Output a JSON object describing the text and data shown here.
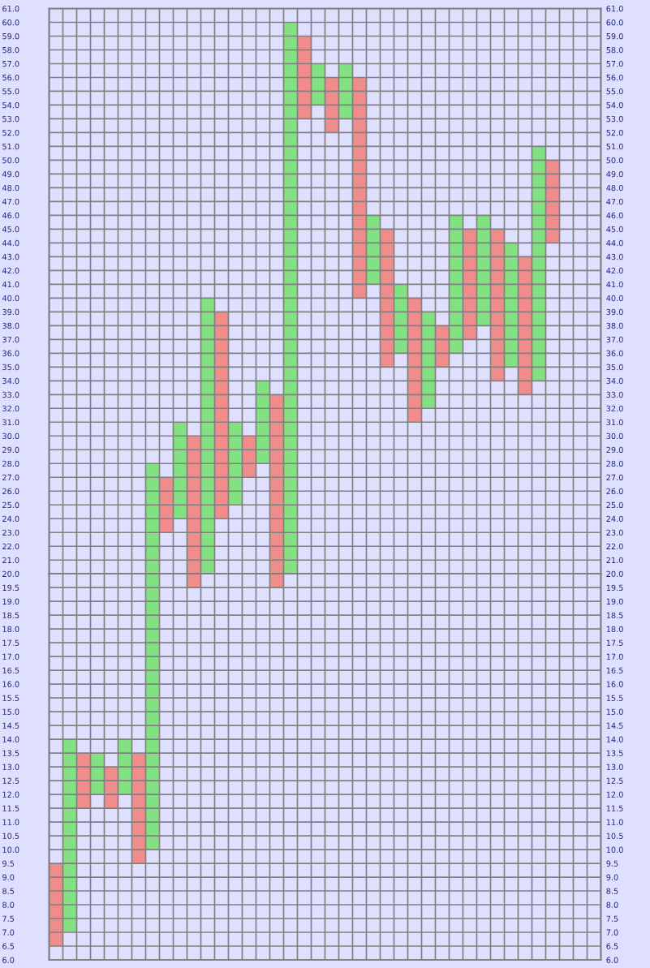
{
  "chart_data": [
    {
      "type": "bar",
      "categories": [
        null,
        null,
        null,
        null,
        null,
        null,
        null,
        null,
        null,
        null,
        null,
        null,
        null,
        null,
        null,
        null,
        null,
        null,
        null,
        null,
        null,
        null,
        null,
        null,
        null,
        null,
        null,
        null,
        null,
        null,
        null,
        null,
        null,
        null,
        null,
        null,
        null,
        null,
        null,
        null
      ],
      "base": [
        null,
        null,
        null,
        null,
        null,
        null,
        null,
        20,
        23,
        24,
        20,
        20,
        24,
        25,
        27,
        28,
        20,
        20,
        53,
        54,
        52,
        53,
        40,
        41,
        35,
        36,
        31,
        32,
        35,
        36,
        37,
        38,
        34,
        35,
        33,
        34,
        44,
        null,
        null,
        null
      ],
      "values": [
        null,
        null,
        null,
        null,
        null,
        null,
        null,
        8,
        4,
        7,
        10,
        20,
        15,
        6,
        3,
        6,
        13,
        40,
        6,
        3,
        4,
        4,
        16,
        5,
        10,
        5,
        9,
        7,
        3,
        10,
        8,
        8,
        11,
        9,
        10,
        17,
        6,
        null,
        null,
        null
      ],
      "colors": [
        null,
        null,
        null,
        null,
        null,
        null,
        null,
        "#82e282",
        "#f08c8c",
        "#82e282",
        "#f08c8c",
        "#82e282",
        "#f08c8c",
        "#82e282",
        "#f08c8c",
        "#82e282",
        "#f08c8c",
        "#82e282",
        "#f08c8c",
        "#82e282",
        "#f08c8c",
        "#82e282",
        "#f08c8c",
        "#82e282",
        "#f08c8c",
        "#82e282",
        "#f08c8c",
        "#82e282",
        "#f08c8c",
        "#82e282",
        "#f08c8c",
        "#82e282",
        "#f08c8c",
        "#82e282",
        "#f08c8c",
        "#82e282",
        "#f08c8c",
        null,
        null,
        null
      ],
      "ylim": [
        20,
        61
      ],
      "yticks": [
        {
          "value": 21,
          "label": "21.0"
        },
        {
          "value": 22,
          "label": "22.0"
        },
        {
          "value": 23,
          "label": "23.0"
        },
        {
          "value": 24,
          "label": "24.0"
        },
        {
          "value": 25,
          "label": "25.0"
        },
        {
          "value": 26,
          "label": "26.0"
        },
        {
          "value": 27,
          "label": "27.0"
        },
        {
          "value": 28,
          "label": "28.0"
        },
        {
          "value": 29,
          "label": "29.0"
        },
        {
          "value": 30,
          "label": "30.0"
        },
        {
          "value": 31,
          "label": "31.0"
        },
        {
          "value": 32,
          "label": "32.0"
        },
        {
          "value": 33,
          "label": "33.0"
        },
        {
          "value": 34,
          "label": "34.0"
        },
        {
          "value": 35,
          "label": "35.0"
        },
        {
          "value": 36,
          "label": "36.0"
        },
        {
          "value": 37,
          "label": "37.0"
        },
        {
          "value": 38,
          "label": "38.0"
        },
        {
          "value": 39,
          "label": "39.0"
        },
        {
          "value": 40,
          "label": "40.0"
        },
        {
          "value": 41,
          "label": "41.0"
        },
        {
          "value": 42,
          "label": "42.0"
        },
        {
          "value": 43,
          "label": "43.0"
        },
        {
          "value": 44,
          "label": "44.0"
        },
        {
          "value": 45,
          "label": "45.0"
        },
        {
          "value": 46,
          "label": "46.0"
        },
        {
          "value": 47,
          "label": "47.0"
        },
        {
          "value": 48,
          "label": "48.0"
        },
        {
          "value": 49,
          "label": "49.0"
        },
        {
          "value": 50,
          "label": "50.0"
        },
        {
          "value": 51,
          "label": "51.0"
        },
        {
          "value": 52,
          "label": "52.0"
        },
        {
          "value": 53,
          "label": "53.0"
        },
        {
          "value": 54,
          "label": "54.0"
        },
        {
          "value": 55,
          "label": "55.0"
        },
        {
          "value": 56,
          "label": "56.0"
        },
        {
          "value": 57,
          "label": "57.0"
        },
        {
          "value": 58,
          "label": "58.0"
        },
        {
          "value": 59,
          "label": "59.0"
        },
        {
          "value": 60,
          "label": "60.0"
        },
        {
          "value": 61,
          "label": "61.0"
        }
      ],
      "y2lim": [
        20,
        61
      ],
      "y2ticks": [
        {
          "value": 21,
          "label": "21.0"
        },
        {
          "value": 22,
          "label": "22.0"
        },
        {
          "value": 23,
          "label": "23.0"
        },
        {
          "value": 24,
          "label": "24.0"
        },
        {
          "value": 25,
          "label": "25.0"
        },
        {
          "value": 26,
          "label": "26.0"
        },
        {
          "value": 27,
          "label": "27.0"
        },
        {
          "value": 28,
          "label": "28.0"
        },
        {
          "value": 29,
          "label": "29.0"
        },
        {
          "value": 30,
          "label": "30.0"
        },
        {
          "value": 31,
          "label": "31.0"
        },
        {
          "value": 32,
          "label": "32.0"
        },
        {
          "value": 33,
          "label": "33.0"
        },
        {
          "value": 34,
          "label": "34.0"
        },
        {
          "value": 35,
          "label": "35.0"
        },
        {
          "value": 36,
          "label": "36.0"
        },
        {
          "value": 37,
          "label": "37.0"
        },
        {
          "value": 38,
          "label": "38.0"
        },
        {
          "value": 39,
          "label": "39.0"
        },
        {
          "value": 40,
          "label": "40.0"
        },
        {
          "value": 41,
          "label": "41.0"
        },
        {
          "value": 42,
          "label": "42.0"
        },
        {
          "value": 43,
          "label": "43.0"
        },
        {
          "value": 44,
          "label": "44.0"
        },
        {
          "value": 45,
          "label": "45.0"
        },
        {
          "value": 46,
          "label": "46.0"
        },
        {
          "value": 47,
          "label": "47.0"
        },
        {
          "value": 48,
          "label": "48.0"
        },
        {
          "value": 49,
          "label": "49.0"
        },
        {
          "value": 50,
          "label": "50.0"
        },
        {
          "value": 51,
          "label": "51.0"
        },
        {
          "value": 52,
          "label": "52.0"
        },
        {
          "value": 53,
          "label": "53.0"
        },
        {
          "value": 54,
          "label": "54.0"
        },
        {
          "value": 55,
          "label": "55.0"
        },
        {
          "value": 56,
          "label": "56.0"
        },
        {
          "value": 57,
          "label": "57.0"
        },
        {
          "value": 58,
          "label": "58.0"
        },
        {
          "value": 59,
          "label": "59.0"
        },
        {
          "value": 60,
          "label": "60.0"
        },
        {
          "value": 61,
          "label": "61.0"
        }
      ],
      "grid": true,
      "tick_labels": "y"
    },
    {
      "type": "bar",
      "categories": [
        null,
        null,
        null,
        null,
        null,
        null,
        null,
        null,
        null,
        null,
        null,
        null,
        null,
        null,
        null,
        null,
        null,
        null,
        null,
        null,
        null,
        null,
        null,
        null,
        null,
        null,
        null,
        null,
        null,
        null,
        null,
        null,
        null,
        null,
        null,
        null,
        null,
        null,
        null,
        null
      ],
      "base": [
        6.5,
        7.0,
        11.5,
        12.0,
        11.5,
        12.0,
        9.5,
        10.0,
        null,
        null,
        19.5,
        null,
        null,
        null,
        null,
        null,
        19.5,
        null,
        null,
        null,
        null,
        null,
        null,
        null,
        null,
        null,
        null,
        null,
        null,
        null,
        null,
        null,
        null,
        null,
        null,
        null,
        null,
        null,
        null,
        null
      ],
      "values": [
        3.0,
        7.0,
        2.0,
        1.5,
        1.5,
        2.0,
        4.0,
        10.0,
        null,
        null,
        0.5,
        null,
        null,
        null,
        null,
        null,
        0.5,
        null,
        null,
        null,
        null,
        null,
        null,
        null,
        null,
        null,
        null,
        null,
        null,
        null,
        null,
        null,
        null,
        null,
        null,
        null,
        null,
        null,
        null,
        null
      ],
      "colors": [
        "#f08c8c",
        "#82e282",
        "#f08c8c",
        "#82e282",
        "#f08c8c",
        "#82e282",
        "#f08c8c",
        "#82e282",
        null,
        null,
        "#f08c8c",
        null,
        null,
        null,
        null,
        null,
        "#f08c8c",
        null,
        null,
        null,
        null,
        null,
        null,
        null,
        null,
        null,
        null,
        null,
        null,
        null,
        null,
        null,
        null,
        null,
        null,
        null,
        null,
        null,
        null,
        null
      ],
      "ylim": [
        6,
        20
      ],
      "yticks": [
        {
          "value": 6,
          "label": "6.0"
        },
        {
          "value": 6.5,
          "label": "6.5"
        },
        {
          "value": 7,
          "label": "7.0"
        },
        {
          "value": 7.5,
          "label": "7.5"
        },
        {
          "value": 8,
          "label": "8.0"
        },
        {
          "value": 8.5,
          "label": "8.5"
        },
        {
          "value": 9,
          "label": "9.0"
        },
        {
          "value": 9.5,
          "label": "9.5"
        },
        {
          "value": 10,
          "label": "10.0"
        },
        {
          "value": 10.5,
          "label": "10.5"
        },
        {
          "value": 11,
          "label": "11.0"
        },
        {
          "value": 11.5,
          "label": "11.5"
        },
        {
          "value": 12,
          "label": "12.0"
        },
        {
          "value": 12.5,
          "label": "12.5"
        },
        {
          "value": 13,
          "label": "13.0"
        },
        {
          "value": 13.5,
          "label": "13.5"
        },
        {
          "value": 14,
          "label": "14.0"
        },
        {
          "value": 14.5,
          "label": "14.5"
        },
        {
          "value": 15,
          "label": "15.0"
        },
        {
          "value": 15.5,
          "label": "15.5"
        },
        {
          "value": 16,
          "label": "16.0"
        },
        {
          "value": 16.5,
          "label": "16.5"
        },
        {
          "value": 17,
          "label": "17.0"
        },
        {
          "value": 17.5,
          "label": "17.5"
        },
        {
          "value": 18,
          "label": "18.0"
        },
        {
          "value": 18.5,
          "label": "18.5"
        },
        {
          "value": 19,
          "label": "19.0"
        },
        {
          "value": 19.5,
          "label": "19.5"
        },
        {
          "value": 20,
          "label": "20.0"
        }
      ],
      "y2lim": [
        6,
        20
      ],
      "y2ticks": [
        {
          "value": 6,
          "label": "6.0"
        },
        {
          "value": 6.5,
          "label": "6.5"
        },
        {
          "value": 7,
          "label": "7.0"
        },
        {
          "value": 7.5,
          "label": "7.5"
        },
        {
          "value": 8,
          "label": "8.0"
        },
        {
          "value": 8.5,
          "label": "8.5"
        },
        {
          "value": 9,
          "label": "9.0"
        },
        {
          "value": 9.5,
          "label": "9.5"
        },
        {
          "value": 10,
          "label": "10.0"
        },
        {
          "value": 10.5,
          "label": "10.5"
        },
        {
          "value": 11,
          "label": "11.0"
        },
        {
          "value": 11.5,
          "label": "11.5"
        },
        {
          "value": 12,
          "label": "12.0"
        },
        {
          "value": 12.5,
          "label": "12.5"
        },
        {
          "value": 13,
          "label": "13.0"
        },
        {
          "value": 13.5,
          "label": "13.5"
        },
        {
          "value": 14,
          "label": "14.0"
        },
        {
          "value": 14.5,
          "label": "14.5"
        },
        {
          "value": 15,
          "label": "15.0"
        },
        {
          "value": 15.5,
          "label": "15.5"
        },
        {
          "value": 16,
          "label": "16.0"
        },
        {
          "value": 16.5,
          "label": "16.5"
        },
        {
          "value": 17,
          "label": "17.0"
        },
        {
          "value": 17.5,
          "label": "17.5"
        },
        {
          "value": 18,
          "label": "18.0"
        },
        {
          "value": 18.5,
          "label": "18.5"
        },
        {
          "value": 19,
          "label": "19.0"
        },
        {
          "value": 19.5,
          "label": "19.5"
        },
        {
          "value": 20,
          "label": "20.0"
        }
      ],
      "grid": true,
      "tick_labels": "y"
    }
  ]
}
